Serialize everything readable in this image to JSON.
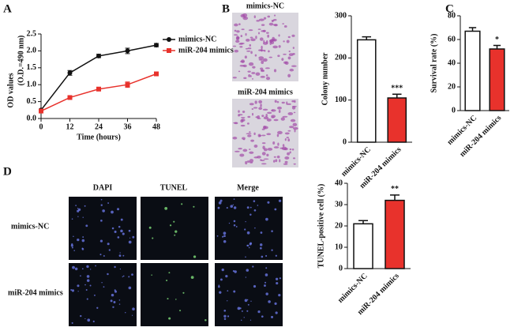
{
  "panel_labels": [
    "A",
    "B",
    "C",
    "D"
  ],
  "colony_images": [
    "mimics-NC",
    "miR-204 mimics"
  ],
  "tunel_images": {
    "columns": [
      "DAPI",
      "TUNEL",
      "Merge"
    ],
    "rows": [
      "mimics-NC",
      "miR-204 mimics"
    ]
  },
  "chart_data": [
    {
      "type": "line",
      "y_label": "OD values",
      "y_sublabel": "(O.D.=490 nm)",
      "x_label": "Time (hours)",
      "x": [
        0,
        12,
        24,
        36,
        48
      ],
      "series": [
        {
          "name": "mimics-NC",
          "color": "#111111",
          "marker": "circle",
          "values": [
            0.25,
            1.35,
            1.85,
            2.0,
            2.17
          ],
          "errors": [
            0.03,
            0.07,
            0.05,
            0.08,
            0.05
          ]
        },
        {
          "name": "miR-204 mimics",
          "color": "#e8322c",
          "marker": "square",
          "values": [
            0.22,
            0.62,
            0.87,
            1.0,
            1.32
          ],
          "errors": [
            0.02,
            0.03,
            0.03,
            0.08,
            0.03
          ]
        }
      ],
      "xlim": [
        0,
        48
      ],
      "xticks": [
        0,
        12,
        24,
        36,
        48
      ],
      "ylim": [
        0,
        2.5
      ],
      "yticks": [
        {
          "value": 0,
          "label": "0.0"
        },
        {
          "value": 0.5,
          "label": "0.5"
        },
        {
          "value": 1,
          "label": "1.0"
        },
        {
          "value": 1.5,
          "label": "1.5"
        },
        {
          "value": 2,
          "label": "2.0"
        },
        {
          "value": 2.5,
          "label": "2.5"
        }
      ]
    },
    {
      "type": "bar",
      "y_label": "Colony number",
      "categories": [
        "mimics-NC",
        "miR-204 mimics"
      ],
      "values": [
        243,
        105
      ],
      "errors": [
        7,
        9
      ],
      "colors": [
        "#ffffff",
        "#e8322c"
      ],
      "significance": "***",
      "ylim": [
        0,
        300
      ],
      "yticks": [
        0,
        100,
        200,
        300
      ]
    },
    {
      "type": "bar",
      "y_label": "Survival rate (%)",
      "categories": [
        "mimics-NC",
        "miR-204 mimics"
      ],
      "values": [
        67,
        52
      ],
      "errors": [
        3,
        3
      ],
      "colors": [
        "#ffffff",
        "#e8322c"
      ],
      "significance": "*",
      "ylim": [
        0,
        80
      ],
      "yticks": [
        0,
        20,
        40,
        60,
        80
      ]
    },
    {
      "type": "bar",
      "y_label": "TUNEL-positive cell (%)",
      "categories": [
        "mimics-NC",
        "miR-204 mimics"
      ],
      "values": [
        21,
        32
      ],
      "errors": [
        1.5,
        2.5
      ],
      "colors": [
        "#ffffff",
        "#e8322c"
      ],
      "significance": "**",
      "ylim": [
        0,
        40
      ],
      "yticks": [
        0,
        10,
        20,
        30,
        40
      ]
    }
  ]
}
